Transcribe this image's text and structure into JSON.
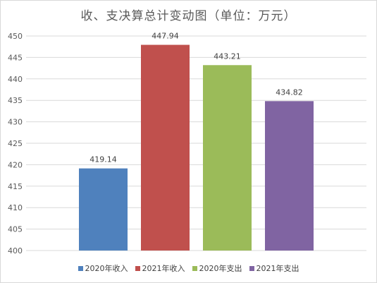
{
  "chart_data": {
    "type": "bar",
    "title": "收、支决算总计变动图（单位：万元）",
    "categories": [
      "2020年收入",
      "2021年收入",
      "2020年支出",
      "2021年支出"
    ],
    "values": [
      419.14,
      447.94,
      443.21,
      434.82
    ],
    "value_labels": [
      "419.14",
      "447.94",
      "443.21",
      "434.82"
    ],
    "colors": [
      "#4f81bd",
      "#c0504d",
      "#9bbb59",
      "#8064a2"
    ],
    "ylim": [
      400,
      450
    ],
    "ytick_step": 5,
    "yticks": [
      "400",
      "405",
      "410",
      "415",
      "420",
      "425",
      "430",
      "435",
      "440",
      "445",
      "450"
    ],
    "grid": true,
    "legend_position": "bottom",
    "xlabel": "",
    "ylabel": ""
  }
}
